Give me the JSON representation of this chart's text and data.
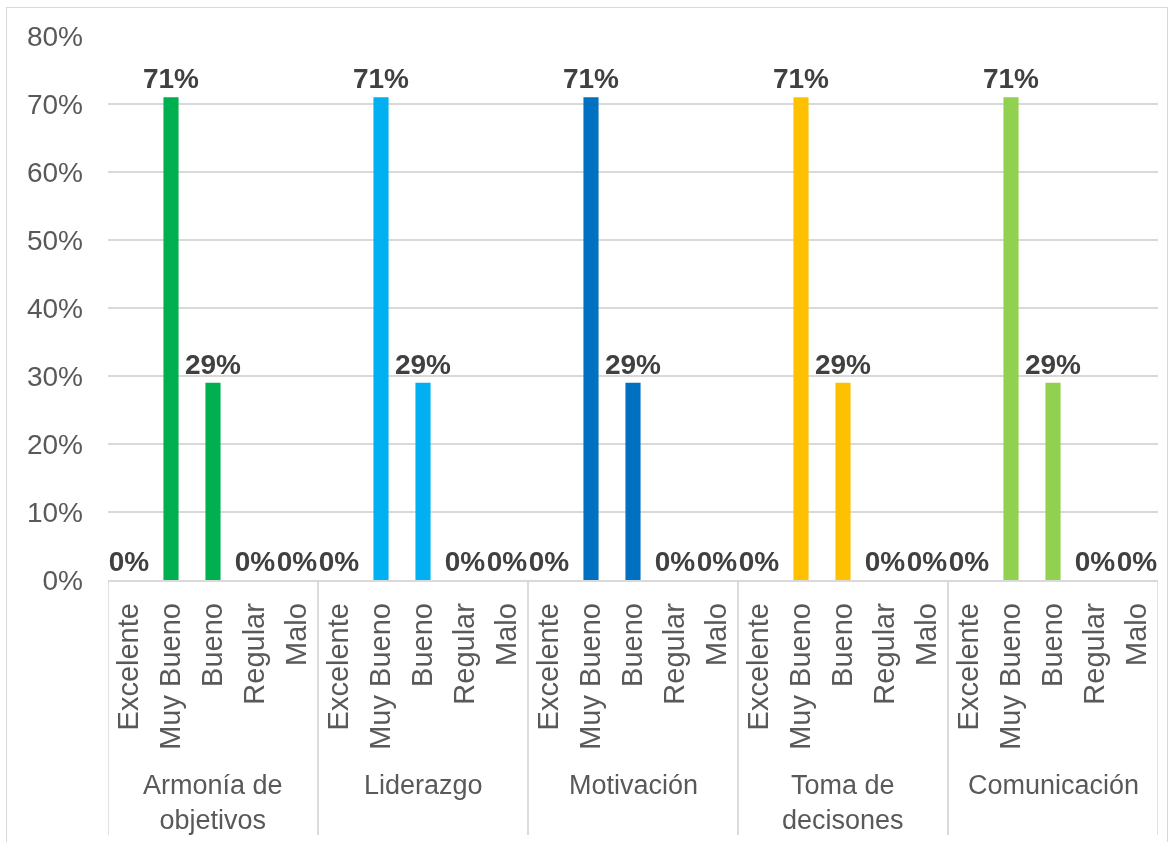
{
  "chart_data": {
    "type": "bar",
    "categories": [
      "Excelente",
      "Muy Bueno",
      "Bueno",
      "Regular",
      "Malo",
      "Excelente",
      "Muy Bueno",
      "Bueno",
      "Regular",
      "Malo",
      "Excelente",
      "Muy Bueno",
      "Bueno",
      "Regular",
      "Malo",
      "Excelente",
      "Muy Bueno",
      "Bueno",
      "Regular",
      "Malo",
      "Excelente",
      "Muy Bueno",
      "Bueno",
      "Regular",
      "Malo"
    ],
    "values": [
      0,
      71,
      29,
      0,
      0,
      0,
      71,
      29,
      0,
      0,
      0,
      71,
      29,
      0,
      0,
      0,
      71,
      29,
      0,
      0,
      0,
      71,
      29,
      0,
      0
    ],
    "value_labels": [
      "0%",
      "71%",
      "29%",
      "0%",
      "0%",
      "0%",
      "71%",
      "29%",
      "0%",
      "0%",
      "0%",
      "71%",
      "29%",
      "0%",
      "0%",
      "0%",
      "71%",
      "29%",
      "0%",
      "0%",
      "0%",
      "71%",
      "29%",
      "0%",
      "0%"
    ],
    "colors": [
      "#00b050",
      "#00b050",
      "#00b050",
      "#00b050",
      "#00b050",
      "#00b0f0",
      "#00b0f0",
      "#00b0f0",
      "#00b0f0",
      "#00b0f0",
      "#0070c0",
      "#0070c0",
      "#0070c0",
      "#0070c0",
      "#0070c0",
      "#ffc000",
      "#ffc000",
      "#ffc000",
      "#ffc000",
      "#ffc000",
      "#92d050",
      "#92d050",
      "#92d050",
      "#92d050",
      "#92d050"
    ],
    "annotations": [
      "Armonía de objetivos",
      "Liderazgo",
      "Motivación",
      "Toma de decisones",
      "Comunicación"
    ],
    "ylim": [
      0,
      80
    ],
    "yticks": [
      {
        "value": 0,
        "label": "0%"
      },
      {
        "value": 10,
        "label": "10%"
      },
      {
        "value": 20,
        "label": "20%"
      },
      {
        "value": 30,
        "label": "30%"
      },
      {
        "value": 40,
        "label": "40%"
      },
      {
        "value": 50,
        "label": "50%"
      },
      {
        "value": 60,
        "label": "60%"
      },
      {
        "value": 70,
        "label": "70%"
      },
      {
        "value": 80,
        "label": "80%"
      }
    ],
    "grid": "y"
  }
}
